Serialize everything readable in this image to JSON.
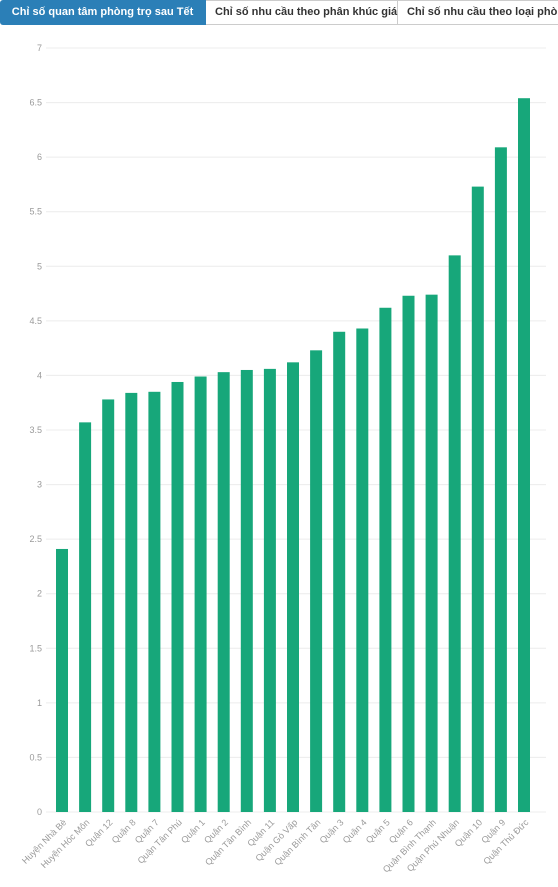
{
  "tabs": [
    {
      "label": "Chỉ số quan tâm phòng trọ sau Tết",
      "active": true
    },
    {
      "label": "Chỉ số nhu cầu theo phân khúc giá",
      "active": false
    },
    {
      "label": "Chỉ số nhu cầu theo loại phòng",
      "active": false
    }
  ],
  "colors": {
    "bar": "#17a77a",
    "active_tab": "#2b7fb7"
  },
  "chart_data": {
    "type": "bar",
    "title": "",
    "xlabel": "",
    "ylabel": "",
    "ylim": [
      0,
      7
    ],
    "yticks": [
      "0",
      "0.5",
      "1",
      "1.5",
      "2",
      "2.5",
      "3",
      "3.5",
      "4",
      "4.5",
      "5",
      "5.5",
      "6",
      "6.5",
      "7"
    ],
    "grid": true,
    "categories": [
      "Huyện Nhà Bè",
      "Huyện Hóc Môn",
      "Quận 12",
      "Quận 8",
      "Quận 7",
      "Quận Tân Phú",
      "Quận 1",
      "Quận 2",
      "Quận Tân Bình",
      "Quận 11",
      "Quận Gò Vấp",
      "Quận Bình Tân",
      "Quận 3",
      "Quận 4",
      "Quận 5",
      "Quận 6",
      "Quận Bình Thạnh",
      "Quận Phú Nhuận",
      "Quận 10",
      "Quận 9",
      "Quận Thủ Đức"
    ],
    "values": [
      2.41,
      3.57,
      3.78,
      3.84,
      3.85,
      3.94,
      3.99,
      4.03,
      4.05,
      4.06,
      4.12,
      4.23,
      4.4,
      4.43,
      4.62,
      4.73,
      4.74,
      5.1,
      5.73,
      6.09,
      6.54
    ]
  }
}
